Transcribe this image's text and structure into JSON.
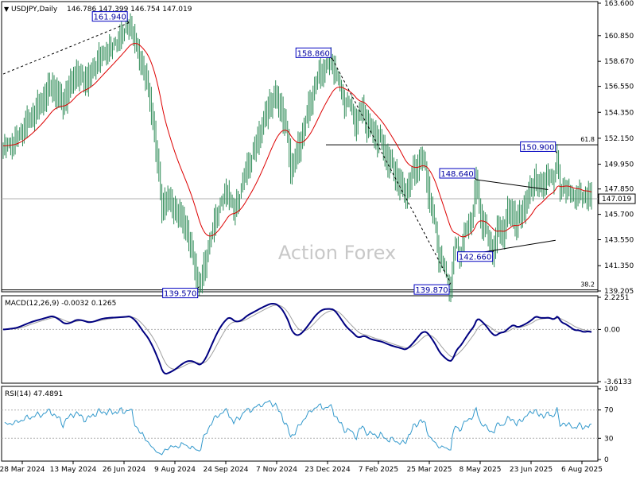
{
  "header": {
    "symbol": "USDJPY,Daily",
    "ohlc": "146.786 147.399 146.754 147.019"
  },
  "watermark": "Action Forex",
  "colors": {
    "bull_bar": "#2e8b57",
    "bear_bar": "#2e8b57",
    "ma": "#dd0000",
    "macd": "#000080",
    "signal": "#a0a0a0",
    "rsi": "#3399cc",
    "trend": "#000000",
    "grid": "#c8c8c8"
  },
  "chart_data": [
    {
      "type": "line",
      "name": "price",
      "ylim": [
        139.205,
        163.6
      ],
      "yticks": [
        "163.600",
        "160.850",
        "158.670",
        "156.550",
        "154.350",
        "152.150",
        "149.950",
        "147.850",
        "145.700",
        "143.550",
        "141.350",
        "139.205"
      ],
      "current_price": "147.019",
      "x_labels": [
        "28 Mar 2024",
        "13 May 2024",
        "26 Jun 2024",
        "9 Aug 2024",
        "24 Sep 2024",
        "7 Nov 2024",
        "23 Dec 2024",
        "7 Feb 2025",
        "25 Mar 2025",
        "8 May 2025",
        "23 Jun 2025",
        "6 Aug 2025"
      ],
      "close_profile": [
        [
          0,
          151.5
        ],
        [
          8,
          152.0
        ],
        [
          16,
          153.5
        ],
        [
          24,
          154.8
        ],
        [
          32,
          156.5
        ],
        [
          40,
          155.0
        ],
        [
          48,
          157.5
        ],
        [
          56,
          157.0
        ],
        [
          64,
          159.0
        ],
        [
          72,
          160.0
        ],
        [
          80,
          161.2
        ],
        [
          84,
          161.94
        ],
        [
          88,
          160.5
        ],
        [
          92,
          158.5
        ],
        [
          96,
          157.0
        ],
        [
          100,
          153.5
        ],
        [
          104,
          149.0
        ],
        [
          106,
          146.0
        ],
        [
          110,
          147.0
        ],
        [
          114,
          146.0
        ],
        [
          118,
          145.5
        ],
        [
          122,
          144.5
        ],
        [
          126,
          142.5
        ],
        [
          129,
          140.5
        ],
        [
          131,
          139.57
        ],
        [
          134,
          141.0
        ],
        [
          138,
          143.5
        ],
        [
          142,
          145.5
        ],
        [
          146,
          147.0
        ],
        [
          150,
          148.0
        ],
        [
          154,
          146.0
        ],
        [
          158,
          147.5
        ],
        [
          162,
          149.5
        ],
        [
          166,
          150.5
        ],
        [
          170,
          152.0
        ],
        [
          174,
          153.5
        ],
        [
          178,
          155.0
        ],
        [
          182,
          155.5
        ],
        [
          186,
          154.5
        ],
        [
          190,
          152.0
        ],
        [
          192,
          149.5
        ],
        [
          196,
          150.5
        ],
        [
          200,
          152.5
        ],
        [
          204,
          154.5
        ],
        [
          208,
          156.5
        ],
        [
          212,
          157.8
        ],
        [
          216,
          158.3
        ],
        [
          220,
          158.86
        ],
        [
          224,
          157.0
        ],
        [
          228,
          155.5
        ],
        [
          232,
          155.0
        ],
        [
          236,
          153.5
        ],
        [
          240,
          154.8
        ],
        [
          244,
          153.0
        ],
        [
          248,
          152.5
        ],
        [
          252,
          151.8
        ],
        [
          256,
          150.5
        ],
        [
          260,
          149.5
        ],
        [
          264,
          148.5
        ],
        [
          268,
          147.2
        ],
        [
          272,
          148.5
        ],
        [
          276,
          149.6
        ],
        [
          279,
          150.5
        ],
        [
          282,
          149.5
        ],
        [
          285,
          147.0
        ],
        [
          288,
          145.0
        ],
        [
          291,
          142.5
        ],
        [
          294,
          141.5
        ],
        [
          297,
          140.0
        ],
        [
          299,
          139.87
        ],
        [
          302,
          143.5
        ],
        [
          305,
          142.5
        ],
        [
          308,
          144.0
        ],
        [
          311,
          145.0
        ],
        [
          314,
          146.0
        ],
        [
          316,
          148.64
        ],
        [
          319,
          145.5
        ],
        [
          322,
          144.5
        ],
        [
          325,
          143.0
        ],
        [
          328,
          142.66
        ],
        [
          331,
          144.5
        ],
        [
          334,
          144.0
        ],
        [
          337,
          145.5
        ],
        [
          340,
          146.0
        ],
        [
          343,
          144.5
        ],
        [
          346,
          145.8
        ],
        [
          349,
          146.5
        ],
        [
          352,
          147.5
        ],
        [
          355,
          148.8
        ],
        [
          358,
          147.8
        ],
        [
          361,
          148.5
        ],
        [
          364,
          149.0
        ],
        [
          367,
          148.5
        ],
        [
          370,
          150.9
        ],
        [
          372,
          147.5
        ],
        [
          375,
          148.5
        ],
        [
          378,
          147.8
        ],
        [
          381,
          147.2
        ],
        [
          384,
          147.8
        ],
        [
          387,
          147.0
        ],
        [
          390,
          147.6
        ],
        [
          393,
          147.019
        ]
      ],
      "annotations": [
        {
          "text": "161.940",
          "value": 161.94
        },
        {
          "text": "139.570",
          "value": 139.57
        },
        {
          "text": "158.860",
          "value": 158.86
        },
        {
          "text": "148.640",
          "value": 148.64
        },
        {
          "text": "139.870",
          "value": 139.87
        },
        {
          "text": "142.660",
          "value": 142.66
        },
        {
          "text": "150.900",
          "value": 150.9
        }
      ],
      "fib_levels": [
        {
          "label": "61.8",
          "value": 151.6
        },
        {
          "label": "38.2",
          "value": 139.3
        }
      ]
    },
    {
      "type": "line",
      "name": "macd",
      "title": "MACD(12,26,9) -0.0032 0.1265",
      "ylim": [
        -3.6133,
        2.2251
      ],
      "yticks": [
        "2.2251",
        "0.00",
        "-3.6133"
      ]
    },
    {
      "type": "line",
      "name": "rsi",
      "title": "RSI(14) 47.4891",
      "ylim": [
        0,
        100
      ],
      "yticks": [
        "100",
        "70",
        "30",
        "0"
      ]
    }
  ]
}
